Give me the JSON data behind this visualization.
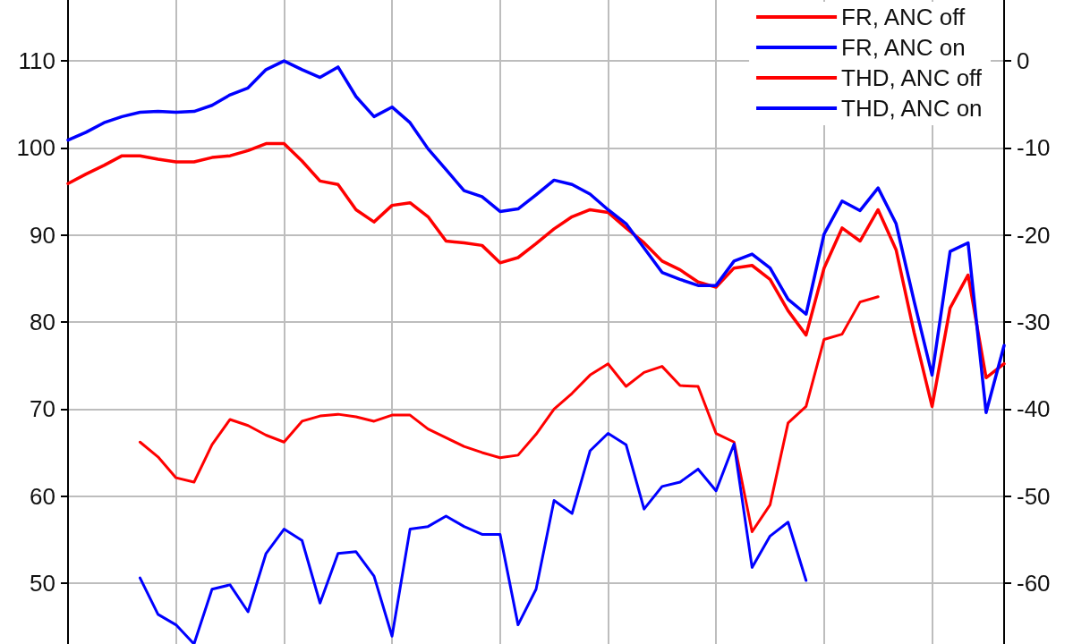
{
  "chart_data": {
    "type": "line",
    "categories": [
      null,
      null,
      null,
      null,
      null,
      null,
      null,
      null,
      null,
      null,
      null,
      null,
      null,
      null,
      null,
      null,
      null,
      null,
      null,
      null,
      null,
      null,
      null,
      null,
      null,
      null,
      null,
      null,
      null,
      null,
      null,
      null,
      null,
      null,
      null,
      null,
      null,
      null,
      null,
      null,
      null,
      null,
      null,
      null,
      null,
      null,
      null,
      null,
      null,
      null,
      null,
      null,
      null
    ],
    "series": [
      {
        "name": "FR, ANC off",
        "color": "#ff0000",
        "values": [
          95.9,
          97.0,
          98.0,
          99.1,
          99.1,
          98.7,
          98.4,
          98.4,
          98.9,
          99.1,
          99.7,
          100.5,
          100.5,
          98.5,
          96.2,
          95.8,
          92.9,
          91.5,
          93.4,
          93.7,
          92.1,
          89.3,
          89.1,
          88.8,
          86.8,
          87.4,
          89.0,
          90.7,
          92.1,
          92.9,
          92.6,
          90.8,
          89.1,
          87.0,
          86.0,
          84.6,
          84.0,
          86.2,
          86.5,
          84.9,
          81.3,
          78.5,
          86.2,
          90.8,
          89.3,
          92.9,
          88.3,
          78.8,
          70.3,
          81.6,
          85.4,
          73.6,
          75.2
        ]
      },
      {
        "name": "FR, ANC on",
        "color": "#0000ff",
        "values": [
          100.9,
          101.8,
          102.9,
          103.6,
          104.1,
          104.2,
          104.1,
          104.2,
          104.9,
          106.1,
          106.9,
          109.0,
          110.0,
          109.0,
          108.1,
          109.3,
          105.9,
          103.6,
          104.7,
          102.9,
          99.9,
          97.5,
          95.1,
          94.4,
          92.7,
          93.0,
          94.6,
          96.3,
          95.8,
          94.7,
          92.9,
          91.3,
          88.5,
          85.7,
          84.9,
          84.2,
          84.2,
          87.0,
          87.8,
          86.2,
          82.6,
          80.9,
          90.1,
          93.9,
          92.8,
          95.4,
          91.3,
          82.4,
          73.9,
          88.1,
          89.1,
          69.6,
          77.3
        ]
      },
      {
        "name": "THD, ANC off",
        "color": "#ff0000",
        "axis": "y2",
        "values": [
          null,
          null,
          null,
          null,
          -43.8,
          -45.5,
          -47.9,
          -48.4,
          -44.1,
          -41.2,
          -41.9,
          -43.0,
          -43.8,
          -41.4,
          -40.8,
          -40.6,
          -40.9,
          -41.4,
          -40.7,
          -40.7,
          -42.3,
          -43.3,
          -44.3,
          -45.0,
          -45.6,
          -45.3,
          -42.9,
          -40.0,
          -38.2,
          -36.1,
          -34.8,
          -37.4,
          -35.8,
          -35.1,
          -37.3,
          -37.4,
          -42.8,
          -43.8,
          -54.1,
          -51.0,
          -41.6,
          -39.7,
          -32.0,
          -31.4,
          -27.7,
          -27.1,
          null,
          null,
          null,
          null,
          null,
          null,
          null
        ]
      },
      {
        "name": "THD, ANC on",
        "color": "#0000ff",
        "axis": "y2",
        "values": [
          null,
          null,
          null,
          null,
          -59.4,
          -63.6,
          -64.8,
          -67,
          -60.7,
          -60.2,
          -63.3,
          -56.6,
          -53.8,
          -55.1,
          -62.3,
          -56.6,
          -56.4,
          -59.2,
          -66.1,
          -53.8,
          -53.5,
          -52.3,
          -53.5,
          -54.4,
          -54.4,
          -64.8,
          -60.7,
          -50.5,
          -52.0,
          -44.8,
          -42.8,
          -44.1,
          -51.5,
          -48.9,
          -48.4,
          -46.9,
          -49.4,
          -44.0,
          -58.2,
          -54.6,
          -53.0,
          -59.7,
          null,
          null,
          null,
          null,
          null,
          null,
          null,
          null,
          null,
          null,
          null
        ]
      }
    ],
    "ylim": [
      43,
      117
    ],
    "yticks": [
      50,
      60,
      70,
      80,
      90,
      100,
      110
    ],
    "y2lim": [
      -67,
      7
    ],
    "y2ticks": [
      -60,
      -50,
      -40,
      -30,
      -20,
      -10,
      0
    ],
    "tick_labels": "y",
    "grid": true,
    "legend": "top right"
  }
}
